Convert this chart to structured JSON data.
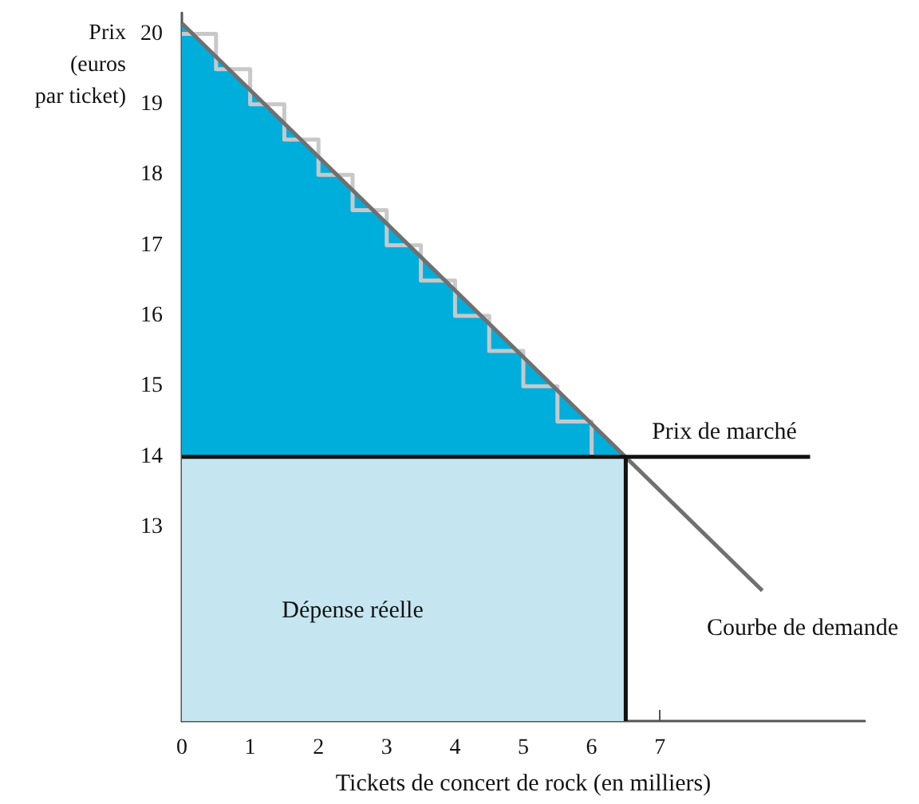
{
  "chart_data": {
    "type": "line",
    "xlabel": "Tickets de concert de rock (en milliers)",
    "ylabel": "Prix\n(euros\npar ticket)",
    "xlim": [
      0,
      10
    ],
    "xticks": [
      0,
      1,
      2,
      3,
      4,
      5,
      6,
      7
    ],
    "ylim": [
      10.25,
      20.3
    ],
    "yticks": [
      13,
      14,
      15,
      16,
      17,
      18,
      19,
      20
    ],
    "grid": false,
    "marker": "none",
    "series": [
      {
        "type": "area",
        "color": "#00aedc",
        "x": [
          0,
          6.5
        ],
        "values": [
          20.15,
          14
        ]
      },
      {
        "type": "area",
        "color": "#c5e6f0",
        "x": [
          0,
          6.5
        ],
        "values": [
          14,
          14
        ]
      },
      {
        "type": "step",
        "color": "#c8c8c8",
        "x": [
          0,
          0.5,
          1,
          1.5,
          2,
          2.5,
          3,
          3.5,
          4,
          4.5,
          5,
          5.5,
          6,
          6.5
        ],
        "values": [
          20,
          19.5,
          19,
          18.5,
          18,
          17.5,
          17,
          16.5,
          16,
          15.5,
          15,
          14.5,
          14,
          14
        ]
      },
      {
        "color": "#707070",
        "x": [
          0,
          8.5
        ],
        "values": [
          20.15,
          12.1
        ]
      },
      {
        "color": "#111111",
        "x": [
          0,
          9.2
        ],
        "values": [
          14,
          14
        ]
      },
      {
        "color": "#111111",
        "x": [
          6.5,
          6.5
        ],
        "values": [
          10.25,
          14
        ]
      }
    ],
    "annotations": [
      "Prix de marché",
      "Courbe de demande",
      "Dépense réelle"
    ]
  }
}
